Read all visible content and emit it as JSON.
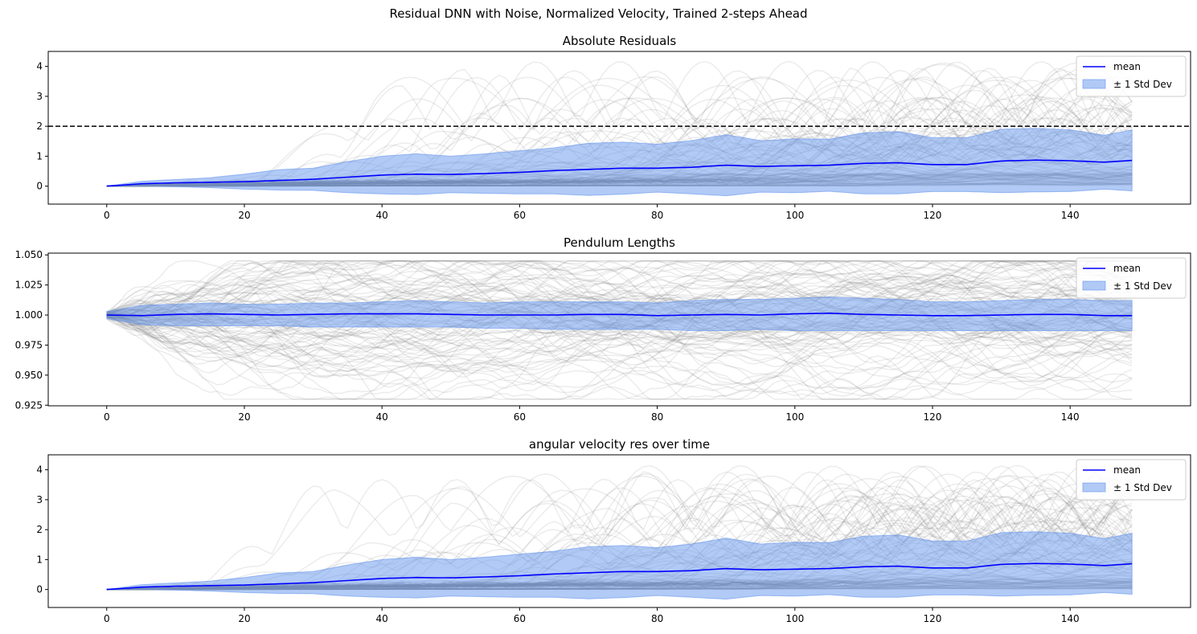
{
  "figure": {
    "suptitle": "Residual DNN with Noise, Normalized Velocity, Trained 2-steps Ahead"
  },
  "colors": {
    "mean_line": "#0000ff",
    "band_fill": "#6495ed",
    "trajectories": "#808080",
    "reference_line": "#000000",
    "axes": "#000000"
  },
  "chart_data": [
    {
      "type": "line",
      "title": "Absolute Residuals",
      "xlabel": "",
      "ylabel": "",
      "xlim": [
        -8.5,
        157.5
      ],
      "ylim": [
        -0.6,
        4.5
      ],
      "xticks": [
        0,
        20,
        40,
        60,
        80,
        100,
        120,
        140
      ],
      "yticks": [
        0,
        1,
        2,
        3,
        4
      ],
      "ytick_labels": [
        "0",
        "1",
        "2",
        "3",
        "4"
      ],
      "grid": false,
      "legend_position": "upper right",
      "legend": [
        {
          "label": "mean",
          "kind": "line"
        },
        {
          "label": "± 1 Std Dev",
          "kind": "patch"
        }
      ],
      "reference_line": {
        "y": 2.0,
        "style": "dashed"
      },
      "trajectory_count": 100,
      "x": [
        0,
        5,
        10,
        15,
        20,
        25,
        30,
        35,
        40,
        45,
        50,
        55,
        60,
        65,
        70,
        75,
        80,
        85,
        90,
        95,
        100,
        105,
        110,
        115,
        120,
        125,
        130,
        135,
        140,
        145,
        149
      ],
      "series": [
        {
          "name": "mean",
          "values": [
            0.0,
            0.08,
            0.11,
            0.13,
            0.15,
            0.19,
            0.23,
            0.3,
            0.37,
            0.4,
            0.39,
            0.42,
            0.46,
            0.52,
            0.56,
            0.6,
            0.6,
            0.63,
            0.7,
            0.66,
            0.68,
            0.7,
            0.76,
            0.78,
            0.72,
            0.72,
            0.84,
            0.87,
            0.85,
            0.8,
            0.86
          ]
        },
        {
          "name": "± 1 Std Dev upper",
          "values": [
            0.0,
            0.16,
            0.22,
            0.28,
            0.4,
            0.55,
            0.6,
            0.82,
            1.0,
            1.08,
            1.0,
            1.08,
            1.18,
            1.28,
            1.43,
            1.47,
            1.4,
            1.52,
            1.72,
            1.52,
            1.58,
            1.57,
            1.78,
            1.82,
            1.62,
            1.62,
            1.9,
            1.93,
            1.88,
            1.7,
            1.88
          ]
        },
        {
          "name": "± 1 Std Dev lower",
          "values": [
            0.0,
            0.0,
            -0.02,
            -0.05,
            -0.1,
            -0.13,
            -0.14,
            -0.22,
            -0.26,
            -0.28,
            -0.22,
            -0.24,
            -0.26,
            -0.26,
            -0.31,
            -0.27,
            -0.2,
            -0.26,
            -0.32,
            -0.2,
            -0.22,
            -0.17,
            -0.26,
            -0.26,
            -0.18,
            -0.18,
            -0.22,
            -0.19,
            -0.18,
            -0.1,
            -0.16
          ]
        }
      ]
    },
    {
      "type": "line",
      "title": "Pendulum Lengths",
      "xlabel": "",
      "ylabel": "",
      "xlim": [
        -8.5,
        157.5
      ],
      "ylim": [
        0.9245,
        1.0515
      ],
      "xticks": [
        0,
        20,
        40,
        60,
        80,
        100,
        120,
        140
      ],
      "yticks": [
        0.925,
        0.95,
        0.975,
        1.0,
        1.025,
        1.05
      ],
      "ytick_labels": [
        "0.925",
        "0.950",
        "0.975",
        "1.000",
        "1.025",
        "1.050"
      ],
      "grid": false,
      "legend_position": "upper right",
      "legend": [
        {
          "label": "mean",
          "kind": "line"
        },
        {
          "label": "± 1 Std Dev",
          "kind": "patch"
        }
      ],
      "trajectory_count": 100,
      "x": [
        0,
        5,
        10,
        15,
        20,
        25,
        30,
        35,
        40,
        45,
        50,
        55,
        60,
        65,
        70,
        75,
        80,
        85,
        90,
        95,
        100,
        105,
        110,
        115,
        120,
        125,
        130,
        135,
        140,
        145,
        149
      ],
      "series": [
        {
          "name": "mean",
          "values": [
            1.0,
            0.9995,
            1.0005,
            1.001,
            1.0005,
            1.0,
            1.0005,
            1.001,
            1.001,
            1.001,
            1.0005,
            1.0,
            1.0,
            1.0,
            1.0005,
            1.0005,
            0.9995,
            1.0,
            1.0005,
            1.0,
            1.001,
            1.0015,
            1.0005,
            1.0,
            0.9995,
            0.9995,
            1.0,
            1.0005,
            1.0005,
            0.9995,
            0.9995
          ]
        },
        {
          "name": "± 1 Std Dev upper",
          "values": [
            1.003,
            1.008,
            1.009,
            1.01,
            1.009,
            1.009,
            1.01,
            1.01,
            1.011,
            1.012,
            1.011,
            1.01,
            1.011,
            1.011,
            1.011,
            1.011,
            1.01,
            1.012,
            1.013,
            1.013,
            1.014,
            1.015,
            1.014,
            1.013,
            1.011,
            1.011,
            1.012,
            1.013,
            1.013,
            1.012,
            1.012
          ]
        },
        {
          "name": "± 1 Std Dev lower",
          "values": [
            0.997,
            0.992,
            0.991,
            0.991,
            0.991,
            0.991,
            0.99,
            0.99,
            0.99,
            0.99,
            0.99,
            0.989,
            0.989,
            0.988,
            0.988,
            0.988,
            0.988,
            0.987,
            0.987,
            0.988,
            0.987,
            0.987,
            0.987,
            0.987,
            0.987,
            0.987,
            0.987,
            0.987,
            0.987,
            0.987,
            0.987
          ]
        }
      ]
    },
    {
      "type": "line",
      "title": "angular velocity res over time",
      "xlabel": "",
      "ylabel": "",
      "xlim": [
        -8.5,
        157.5
      ],
      "ylim": [
        -0.6,
        4.5
      ],
      "xticks": [
        0,
        20,
        40,
        60,
        80,
        100,
        120,
        140
      ],
      "yticks": [
        0,
        1,
        2,
        3,
        4
      ],
      "ytick_labels": [
        "0",
        "1",
        "2",
        "3",
        "4"
      ],
      "grid": false,
      "legend_position": "upper right",
      "legend": [
        {
          "label": "mean",
          "kind": "line"
        },
        {
          "label": "± 1 Std Dev",
          "kind": "patch"
        }
      ],
      "trajectory_count": 100,
      "x": [
        0,
        5,
        10,
        15,
        20,
        25,
        30,
        35,
        40,
        45,
        50,
        55,
        60,
        65,
        70,
        75,
        80,
        85,
        90,
        95,
        100,
        105,
        110,
        115,
        120,
        125,
        130,
        135,
        140,
        145,
        149
      ],
      "series": [
        {
          "name": "mean",
          "values": [
            0.0,
            0.08,
            0.11,
            0.13,
            0.15,
            0.19,
            0.23,
            0.3,
            0.37,
            0.4,
            0.39,
            0.42,
            0.46,
            0.52,
            0.56,
            0.6,
            0.6,
            0.63,
            0.7,
            0.66,
            0.68,
            0.7,
            0.76,
            0.78,
            0.72,
            0.72,
            0.84,
            0.87,
            0.85,
            0.8,
            0.86
          ]
        },
        {
          "name": "± 1 Std Dev upper",
          "values": [
            0.0,
            0.16,
            0.22,
            0.28,
            0.4,
            0.55,
            0.6,
            0.82,
            1.0,
            1.08,
            1.0,
            1.08,
            1.18,
            1.28,
            1.43,
            1.47,
            1.4,
            1.52,
            1.72,
            1.52,
            1.58,
            1.57,
            1.78,
            1.82,
            1.62,
            1.62,
            1.9,
            1.93,
            1.88,
            1.7,
            1.88
          ]
        },
        {
          "name": "± 1 Std Dev lower",
          "values": [
            0.0,
            0.0,
            -0.02,
            -0.05,
            -0.1,
            -0.13,
            -0.14,
            -0.22,
            -0.26,
            -0.28,
            -0.22,
            -0.24,
            -0.26,
            -0.26,
            -0.31,
            -0.27,
            -0.2,
            -0.26,
            -0.32,
            -0.2,
            -0.22,
            -0.17,
            -0.26,
            -0.26,
            -0.18,
            -0.18,
            -0.22,
            -0.19,
            -0.18,
            -0.1,
            -0.16
          ]
        }
      ]
    }
  ]
}
